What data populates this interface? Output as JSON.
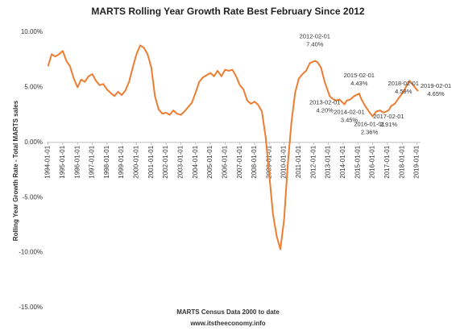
{
  "chart_data": {
    "type": "line",
    "title": "MARTS Rolling Year Growth Rate Best February Since 2012",
    "y_axis_label": "Rolling Year Growth Rate - Total MARTS sales",
    "x_axis_label": "MARTS Census Data 2000 to date",
    "footer": "www.itstheeconomy.info",
    "xlim": [
      "1993-12-01",
      "2019-04-01"
    ],
    "ylim": [
      -15,
      10
    ],
    "yticks": [
      {
        "value": -15,
        "label": "-15.00%"
      },
      {
        "value": -10,
        "label": "-10.00%"
      },
      {
        "value": -5,
        "label": "-5.00%"
      },
      {
        "value": 0,
        "label": "0.00%"
      },
      {
        "value": 5,
        "label": "5.00%"
      },
      {
        "value": 10,
        "label": "10.00%"
      }
    ],
    "xticks": [
      "1994-01-01",
      "1995-01-01",
      "1996-01-01",
      "1997-01-01",
      "1998-01-01",
      "1999-01-01",
      "2000-01-01",
      "2001-01-01",
      "2002-01-01",
      "2003-01-01",
      "2004-01-01",
      "2005-01-01",
      "2006-01-01",
      "2007-01-01",
      "2008-01-01",
      "2009-01-01",
      "2010-01-01",
      "2011-01-01",
      "2012-01-01",
      "2013-01-01",
      "2014-01-01",
      "2015-01-01",
      "2016-01-01",
      "2017-01-01",
      "2018-01-01",
      "2019-01-01"
    ],
    "x": [
      "1994-01-01",
      "1994-04-01",
      "1994-07-01",
      "1994-10-01",
      "1995-01-01",
      "1995-04-01",
      "1995-07-01",
      "1995-10-01",
      "1996-01-01",
      "1996-04-01",
      "1996-07-01",
      "1996-10-01",
      "1997-01-01",
      "1997-04-01",
      "1997-07-01",
      "1997-10-01",
      "1998-01-01",
      "1998-04-01",
      "1998-07-01",
      "1998-10-01",
      "1999-01-01",
      "1999-04-01",
      "1999-07-01",
      "1999-10-01",
      "2000-01-01",
      "2000-04-01",
      "2000-07-01",
      "2000-10-01",
      "2001-01-01",
      "2001-04-01",
      "2001-07-01",
      "2001-10-01",
      "2002-01-01",
      "2002-04-01",
      "2002-07-01",
      "2002-10-01",
      "2003-01-01",
      "2003-04-01",
      "2003-07-01",
      "2003-10-01",
      "2004-01-01",
      "2004-04-01",
      "2004-07-01",
      "2004-10-01",
      "2005-01-01",
      "2005-04-01",
      "2005-07-01",
      "2005-10-01",
      "2006-01-01",
      "2006-04-01",
      "2006-07-01",
      "2006-10-01",
      "2007-01-01",
      "2007-04-01",
      "2007-07-01",
      "2007-10-01",
      "2008-01-01",
      "2008-04-01",
      "2008-07-01",
      "2008-10-01",
      "2009-01-01",
      "2009-04-01",
      "2009-07-01",
      "2009-10-01",
      "2010-01-01",
      "2010-04-01",
      "2010-07-01",
      "2010-10-01",
      "2011-01-01",
      "2011-04-01",
      "2011-07-01",
      "2011-10-01",
      "2012-02-01",
      "2012-04-01",
      "2012-07-01",
      "2012-10-01",
      "2013-02-01",
      "2013-04-01",
      "2013-07-01",
      "2013-10-01",
      "2014-02-01",
      "2014-04-01",
      "2014-07-01",
      "2014-10-01",
      "2015-02-01",
      "2015-04-01",
      "2015-07-01",
      "2015-10-01",
      "2016-01-01",
      "2016-04-01",
      "2016-07-01",
      "2016-10-01",
      "2017-02-01",
      "2017-04-01",
      "2017-07-01",
      "2017-10-01",
      "2018-02-01",
      "2018-04-01",
      "2018-07-01",
      "2018-10-01",
      "2019-02-01"
    ],
    "series": [
      {
        "color": "#ed7d31",
        "values": [
          6.9,
          8.0,
          7.8,
          8.0,
          8.3,
          7.4,
          6.9,
          5.8,
          5.0,
          5.7,
          5.5,
          6.0,
          6.2,
          5.6,
          5.2,
          5.3,
          4.8,
          4.5,
          4.2,
          4.6,
          4.3,
          4.7,
          5.5,
          6.8,
          8.0,
          8.8,
          8.6,
          8.0,
          6.8,
          4.2,
          3.0,
          2.6,
          2.7,
          2.5,
          2.9,
          2.6,
          2.5,
          2.8,
          3.2,
          3.6,
          4.5,
          5.5,
          5.9,
          6.1,
          6.3,
          6.0,
          6.5,
          6.0,
          6.6,
          6.5,
          6.6,
          6.0,
          5.2,
          4.8,
          3.8,
          3.5,
          3.7,
          3.4,
          2.8,
          0.5,
          -3.0,
          -6.5,
          -8.5,
          -9.7,
          -7.0,
          -2.0,
          1.8,
          4.5,
          5.8,
          6.2,
          6.5,
          7.2,
          7.4,
          7.3,
          6.8,
          5.5,
          4.2,
          4.0,
          3.8,
          3.9,
          3.45,
          3.8,
          3.9,
          4.2,
          4.43,
          3.9,
          3.3,
          2.8,
          2.36,
          2.8,
          2.9,
          2.7,
          2.91,
          3.3,
          3.5,
          4.0,
          4.59,
          5.0,
          5.6,
          5.2,
          4.65
        ]
      }
    ],
    "annotations": [
      {
        "x": "2012-02-01",
        "value": 7.4,
        "label": "7.40%"
      },
      {
        "x": "2013-02-01",
        "value": 4.2,
        "label": "4.20%"
      },
      {
        "x": "2014-02-01",
        "value": 3.45,
        "label": "3.45%"
      },
      {
        "x": "2015-02-01",
        "value": 4.43,
        "label": "4.43%"
      },
      {
        "x": "2016-01-01",
        "value": 2.36,
        "label": "2.36%"
      },
      {
        "x": "2017-02-01",
        "value": 2.91,
        "label": "2.91%"
      },
      {
        "x": "2018-02-01",
        "value": 4.59,
        "label": "4.59%"
      },
      {
        "x": "2019-02-01",
        "value": 4.65,
        "label": "4.65%"
      }
    ]
  }
}
